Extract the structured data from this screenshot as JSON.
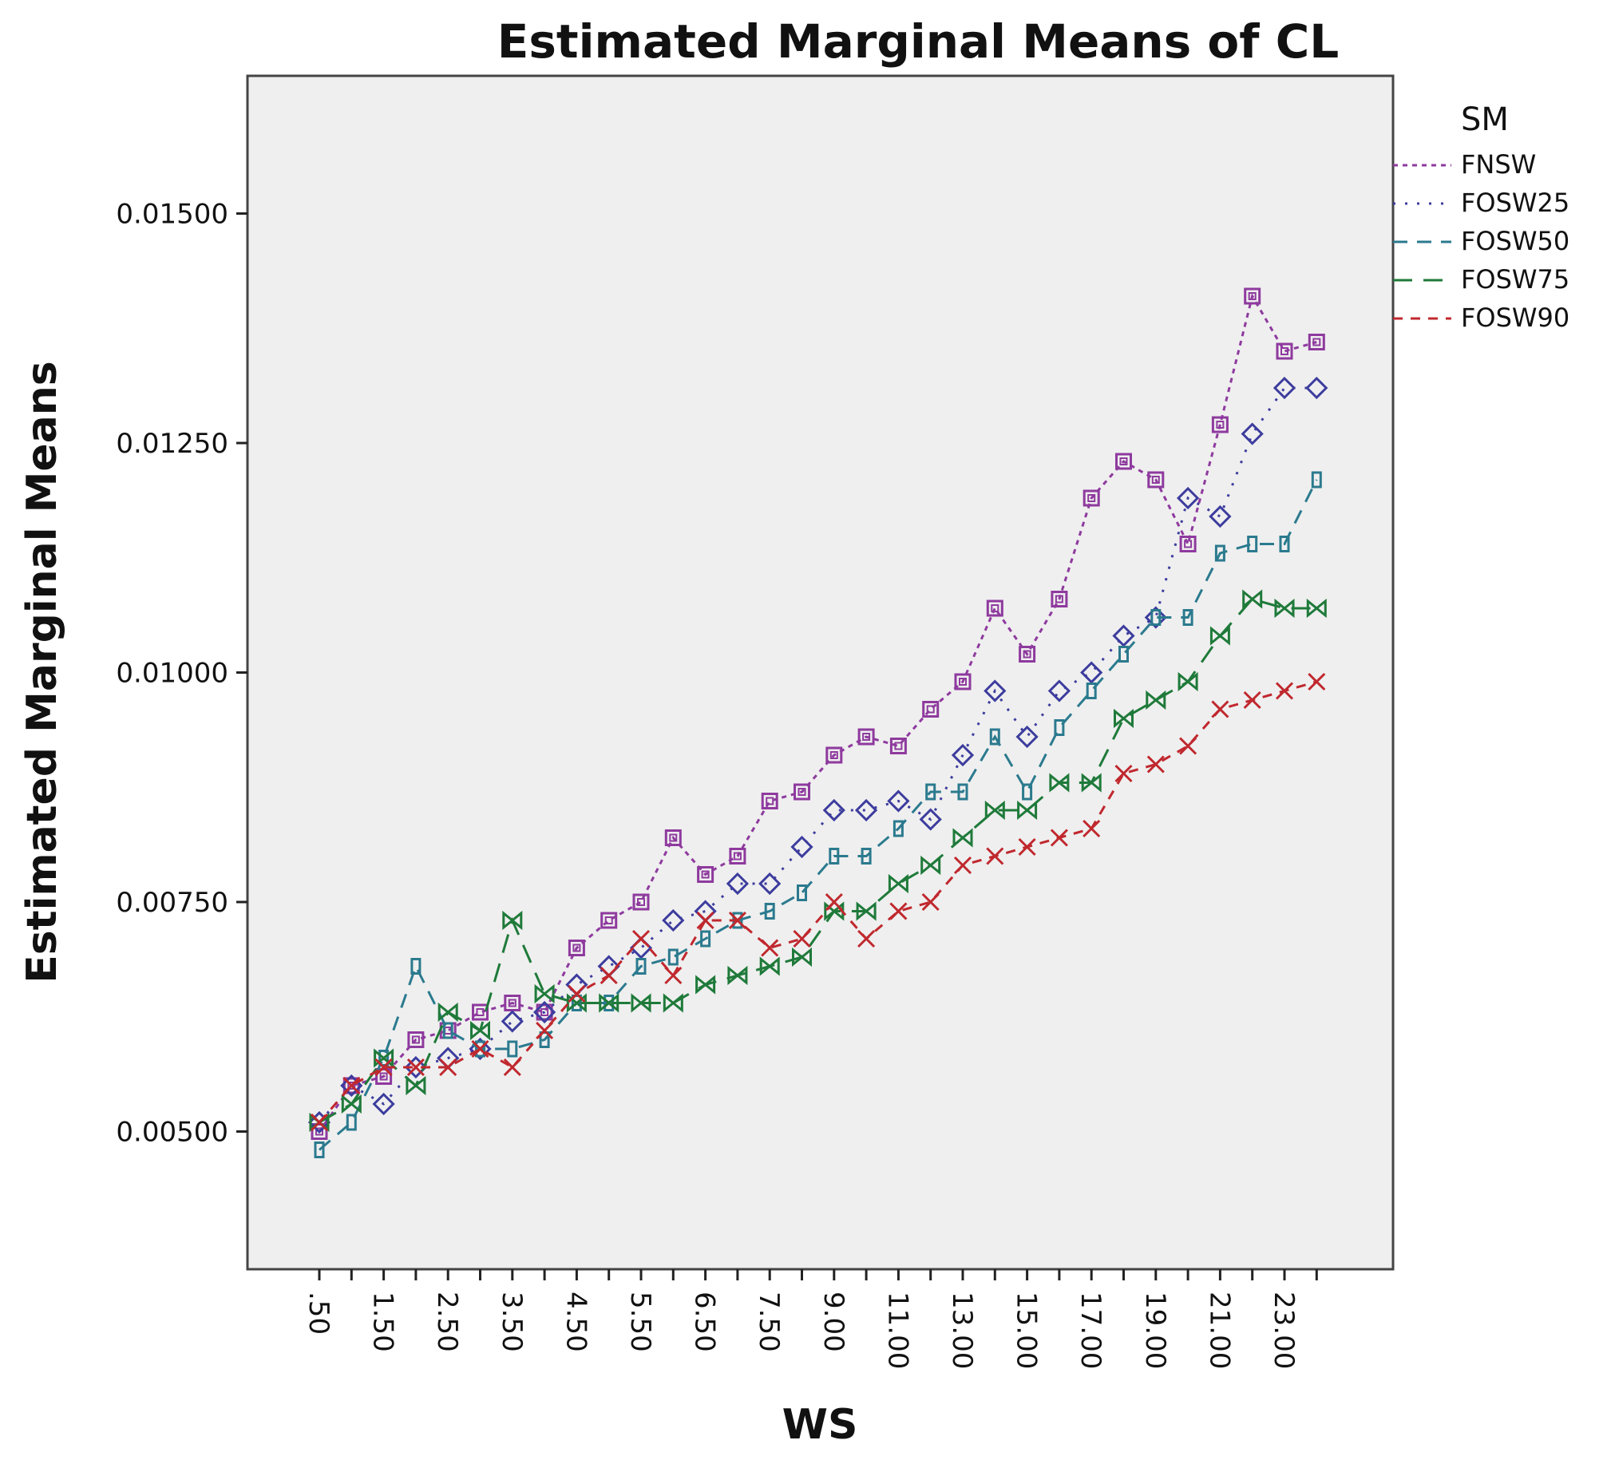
{
  "chart_data": {
    "type": "line",
    "title": "Estimated Marginal Means of CL",
    "xlabel": "WS",
    "ylabel": "Estimated Marginal Means",
    "ylim": [
      0.0035,
      0.0165
    ],
    "yticks": [
      "0.00500",
      "0.00750",
      "0.01000",
      "0.01250",
      "0.01500"
    ],
    "ytick_values": [
      0.005,
      0.0075,
      0.01,
      0.0125,
      0.015
    ],
    "categories": [
      ".50",
      "1.00",
      "1.50",
      "2.00",
      "2.50",
      "3.00",
      "3.50",
      "4.00",
      "4.50",
      "5.00",
      "5.50",
      "6.00",
      "6.50",
      "7.00",
      "7.50",
      "8.00",
      "9.00",
      "10.00",
      "11.00",
      "12.00",
      "13.00",
      "14.00",
      "15.00",
      "16.00",
      "17.00",
      "18.00",
      "19.00",
      "20.00",
      "21.00",
      "22.00",
      "23.00",
      "24.00"
    ],
    "x_tick_labels": [
      ".50",
      "1.50",
      "2.50",
      "3.50",
      "4.50",
      "5.50",
      "6.50",
      "7.50",
      "9.00",
      "11.00",
      "13.00",
      "15.00",
      "17.00",
      "19.00",
      "21.00",
      "23.00"
    ],
    "legend_title": "SM",
    "legend_position": "right",
    "grid": false,
    "series": [
      {
        "name": "FNSW",
        "color": "#8e3a9e",
        "marker": "square",
        "values": [
          0.005,
          0.0055,
          0.0056,
          0.006,
          0.0061,
          0.0063,
          0.0064,
          0.0063,
          0.007,
          0.0073,
          0.0075,
          0.0082,
          0.0078,
          0.008,
          0.0086,
          0.0087,
          0.0091,
          0.0093,
          0.0092,
          0.0096,
          0.0099,
          0.0107,
          0.0102,
          0.0108,
          0.0119,
          0.0123,
          0.0121,
          0.0114,
          0.0127,
          0.0141,
          0.0135,
          0.0136
        ]
      },
      {
        "name": "FOSW25",
        "color": "#3c3c9e",
        "marker": "diamond",
        "values": [
          0.0051,
          0.0055,
          0.0053,
          0.0057,
          0.0058,
          0.0059,
          0.0062,
          0.0063,
          0.0066,
          0.0068,
          0.007,
          0.0073,
          0.0074,
          0.0077,
          0.0077,
          0.0081,
          0.0085,
          0.0085,
          0.0086,
          0.0084,
          0.0091,
          0.0098,
          0.0093,
          0.0098,
          0.01,
          0.0104,
          0.0106,
          0.0119,
          0.0117,
          0.0126,
          0.0131,
          0.0131
        ]
      },
      {
        "name": "FOSW50",
        "color": "#2b7a8e",
        "marker": "rect",
        "values": [
          0.0048,
          0.0051,
          0.0058,
          0.0068,
          0.0061,
          0.0059,
          0.0059,
          0.006,
          0.0064,
          0.0064,
          0.0068,
          0.0069,
          0.0071,
          0.0073,
          0.0074,
          0.0076,
          0.008,
          0.008,
          0.0083,
          0.0087,
          0.0087,
          0.0093,
          0.0087,
          0.0094,
          0.0098,
          0.0102,
          0.0106,
          0.0106,
          0.0113,
          0.0114,
          0.0114,
          0.0121
        ]
      },
      {
        "name": "FOSW75",
        "color": "#1f7a3a",
        "marker": "bowtie",
        "values": [
          0.0051,
          0.0053,
          0.0058,
          0.0055,
          0.0063,
          0.0061,
          0.0073,
          0.0065,
          0.0064,
          0.0064,
          0.0064,
          0.0064,
          0.0066,
          0.0067,
          0.0068,
          0.0069,
          0.0074,
          0.0074,
          0.0077,
          0.0079,
          0.0082,
          0.0085,
          0.0085,
          0.0088,
          0.0088,
          0.0095,
          0.0097,
          0.0099,
          0.0104,
          0.0108,
          0.0107,
          0.0107
        ]
      },
      {
        "name": "FOSW90",
        "color": "#c0282e",
        "marker": "x",
        "values": [
          0.0051,
          0.0055,
          0.0057,
          0.0057,
          0.0057,
          0.0059,
          0.0057,
          0.0061,
          0.0065,
          0.0067,
          0.0071,
          0.0067,
          0.0073,
          0.0073,
          0.007,
          0.0071,
          0.0075,
          0.0071,
          0.0074,
          0.0075,
          0.0079,
          0.008,
          0.0081,
          0.0082,
          0.0083,
          0.0089,
          0.009,
          0.0092,
          0.0096,
          0.0097,
          0.0098,
          0.0099
        ]
      }
    ]
  }
}
